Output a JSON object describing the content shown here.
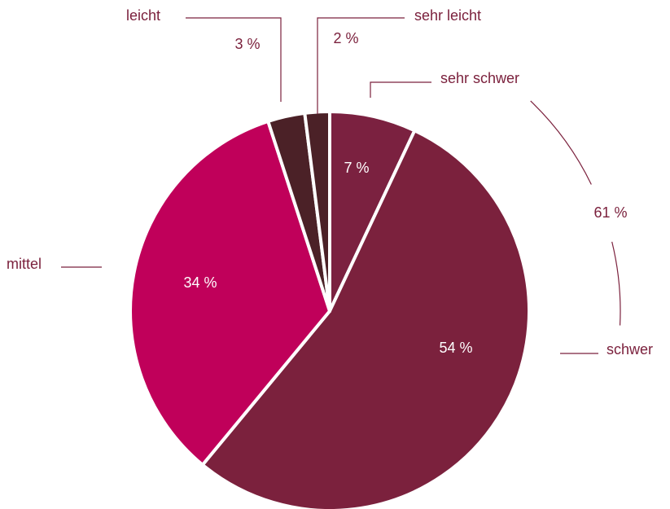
{
  "chart_data": {
    "type": "pie",
    "categories": [
      "sehr schwer",
      "schwer",
      "mittel",
      "leicht",
      "sehr leicht"
    ],
    "values": [
      7,
      54,
      34,
      3,
      2
    ],
    "value_labels": [
      "7 %",
      "54 %",
      "34 %",
      "3 %",
      "2 %"
    ],
    "colors": [
      "#7b2140",
      "#7b213d",
      "#c0005a",
      "#4b2127",
      "#4b2127"
    ],
    "annotations": [
      {
        "text": "61 %"
      }
    ]
  }
}
